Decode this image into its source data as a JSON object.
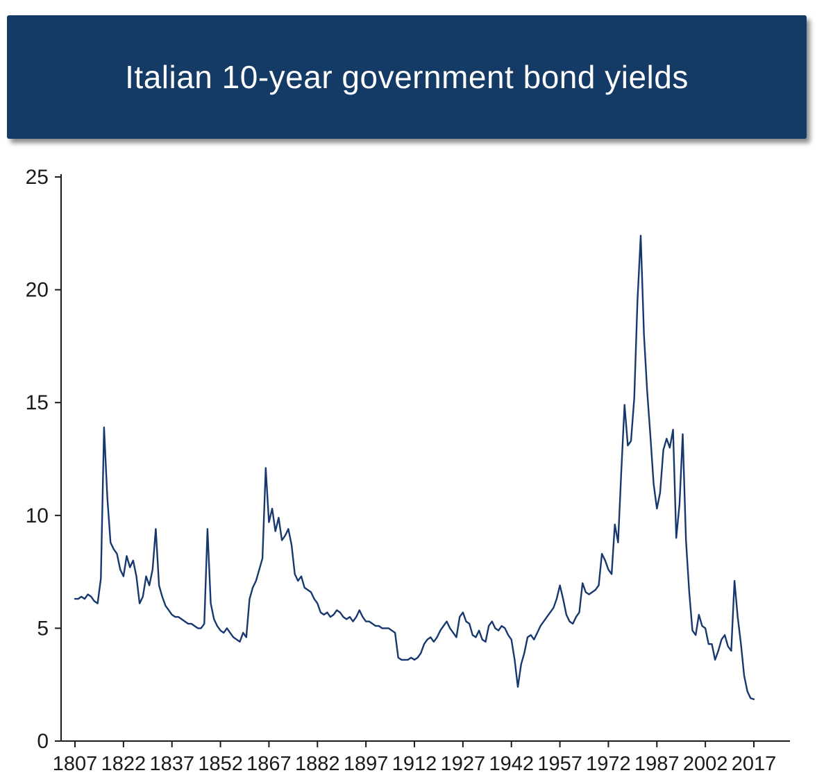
{
  "banner": {
    "title": "Italian 10-year government bond yields",
    "background_color": "#143a66",
    "text_color": "#ffffff"
  },
  "chart_data": {
    "type": "line",
    "title": "Italian 10-year government bond yields",
    "xlabel": "",
    "ylabel": "",
    "ylim": [
      0,
      25
    ],
    "xlim": [
      1807,
      2017
    ],
    "y_ticks": [
      0,
      5,
      10,
      15,
      20,
      25
    ],
    "x_ticks": [
      1807,
      1822,
      1837,
      1852,
      1867,
      1882,
      1897,
      1912,
      1927,
      1942,
      1957,
      1972,
      1987,
      2002,
      2017
    ],
    "grid": false,
    "legend": false,
    "line_color": "#17386e",
    "axis_color": "#1a1a1a",
    "series": [
      {
        "name": "Italian 10-year government bond yield (%)",
        "start_year": 1807,
        "step_years": 1,
        "values": [
          6.3,
          6.3,
          6.4,
          6.3,
          6.5,
          6.4,
          6.2,
          6.1,
          7.2,
          13.9,
          10.8,
          8.8,
          8.5,
          8.3,
          7.6,
          7.3,
          8.2,
          7.7,
          8.0,
          7.3,
          6.1,
          6.4,
          7.3,
          6.9,
          7.6,
          9.4,
          6.9,
          6.4,
          6.0,
          5.8,
          5.6,
          5.5,
          5.5,
          5.4,
          5.3,
          5.2,
          5.2,
          5.1,
          5.0,
          5.0,
          5.2,
          9.4,
          6.1,
          5.4,
          5.1,
          4.9,
          4.8,
          5.0,
          4.8,
          4.6,
          4.5,
          4.4,
          4.8,
          4.6,
          6.3,
          6.8,
          7.1,
          7.6,
          8.1,
          12.1,
          9.7,
          10.3,
          9.3,
          9.9,
          8.9,
          9.1,
          9.4,
          8.7,
          7.4,
          7.1,
          7.3,
          6.8,
          6.7,
          6.6,
          6.3,
          6.1,
          5.7,
          5.6,
          5.7,
          5.5,
          5.6,
          5.8,
          5.7,
          5.5,
          5.4,
          5.5,
          5.3,
          5.5,
          5.8,
          5.5,
          5.3,
          5.3,
          5.2,
          5.1,
          5.1,
          5.0,
          5.0,
          5.0,
          4.9,
          4.8,
          3.7,
          3.6,
          3.6,
          3.6,
          3.7,
          3.6,
          3.7,
          3.9,
          4.3,
          4.5,
          4.6,
          4.4,
          4.6,
          4.9,
          5.1,
          5.3,
          5.0,
          4.8,
          4.6,
          5.5,
          5.7,
          5.3,
          5.2,
          4.7,
          4.6,
          4.9,
          4.5,
          4.4,
          5.1,
          5.3,
          5.0,
          4.9,
          5.1,
          5.0,
          4.7,
          4.5,
          3.6,
          2.4,
          3.4,
          3.9,
          4.6,
          4.7,
          4.5,
          4.8,
          5.1,
          5.3,
          5.5,
          5.7,
          5.9,
          6.3,
          6.9,
          6.3,
          5.6,
          5.3,
          5.2,
          5.5,
          5.7,
          7.0,
          6.6,
          6.5,
          6.6,
          6.7,
          6.9,
          8.3,
          8.0,
          7.6,
          7.4,
          9.6,
          8.8,
          12.0,
          14.9,
          13.1,
          13.3,
          15.2,
          19.5,
          22.4,
          18.0,
          15.5,
          13.5,
          11.4,
          10.3,
          11.0,
          12.9,
          13.4,
          13.0,
          13.8,
          9.0,
          10.5,
          13.6,
          8.9,
          6.6,
          4.9,
          4.7,
          5.6,
          5.1,
          5.0,
          4.3,
          4.3,
          3.6,
          4.0,
          4.5,
          4.7,
          4.2,
          4.0,
          7.1,
          5.5,
          4.3,
          2.9,
          2.2,
          1.9,
          1.85
        ]
      }
    ]
  }
}
